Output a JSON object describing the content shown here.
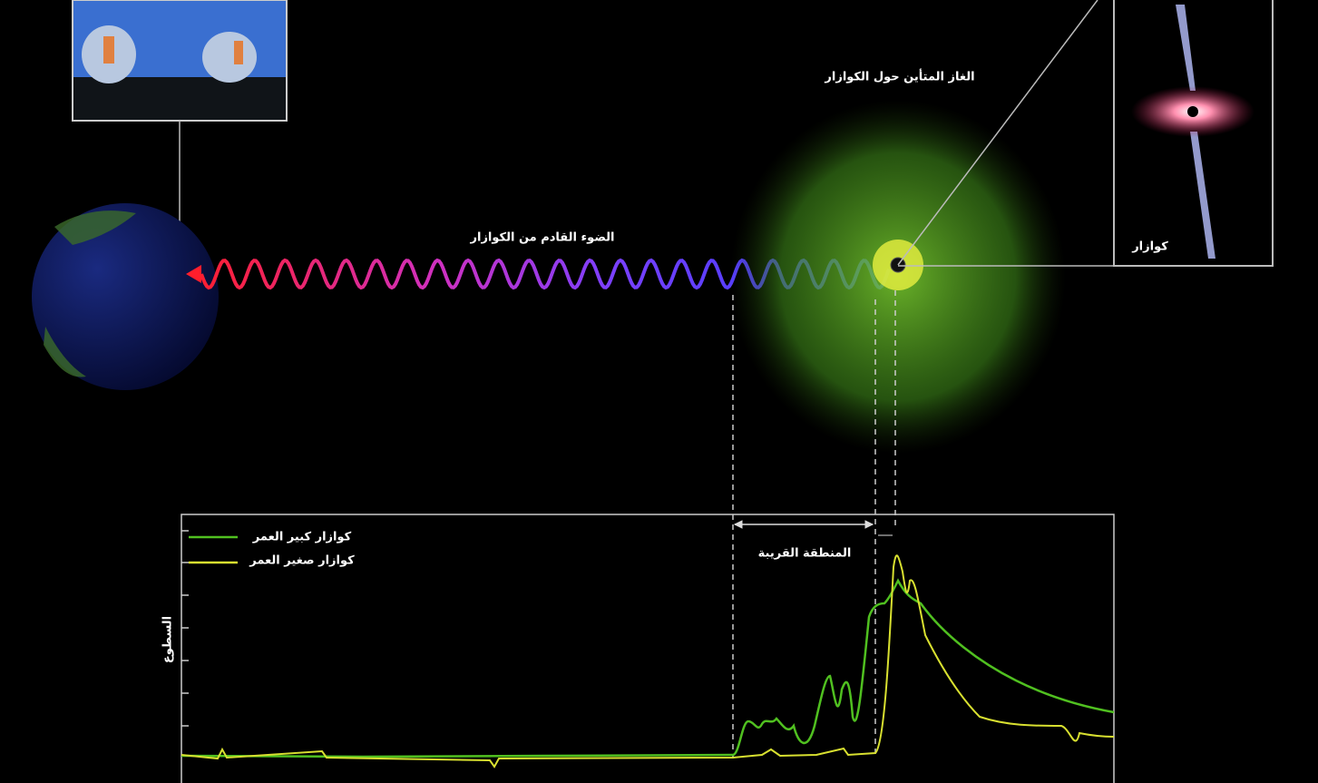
{
  "cloud_label": "الغاز المتأين حول الكوازار",
  "light_label": "الضوء القادم من الكوازار",
  "quasar_label": "كوازار",
  "chart": {
    "legend": [
      "كوازار كبير العمر",
      "كوازار صغير العمر"
    ],
    "region_label": "المنطقة القريبة",
    "y_label": "السطوع"
  }
}
